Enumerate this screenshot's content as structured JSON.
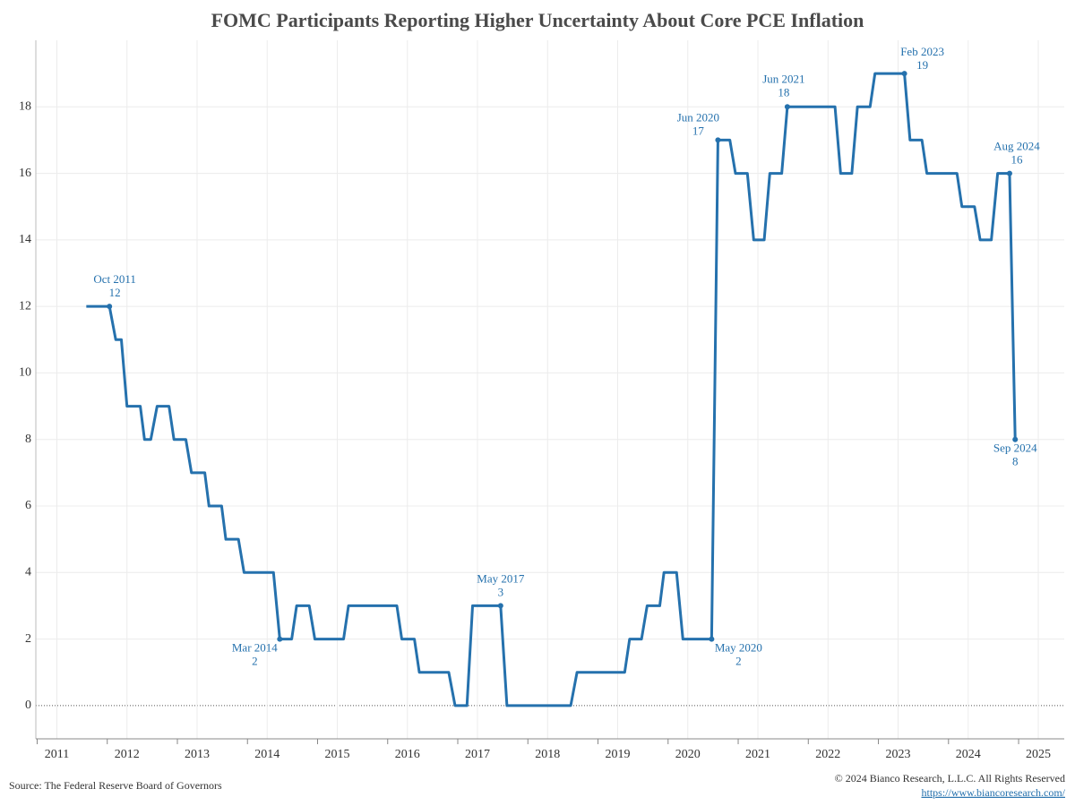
{
  "chart_data": {
    "type": "line",
    "title": "FOMC Participants Reporting Higher Uncertainty About Core PCE Inflation",
    "source": "Source: The Federal Reserve Board of Governors",
    "copyright": "© 2024 Bianco Research, L.L.C. All Rights Reserved",
    "url": "https://www.biancoresearch.com/",
    "xlim": [
      2010.7,
      2025.37
    ],
    "xticks": [
      2011,
      2012,
      2013,
      2014,
      2015,
      2016,
      2017,
      2018,
      2019,
      2020,
      2021,
      2022,
      2023,
      2024,
      2025
    ],
    "ylim": [
      -1,
      20
    ],
    "yticks": [
      0,
      2,
      4,
      6,
      8,
      10,
      12,
      14,
      16,
      18
    ],
    "grid": true,
    "series": [
      {
        "name": "Participants",
        "color": "#2571ad",
        "x": [
          2011.42,
          2011.75,
          2011.84,
          2011.92,
          2012.0,
          2012.19,
          2012.25,
          2012.34,
          2012.43,
          2012.6,
          2012.67,
          2012.84,
          2012.92,
          2013.11,
          2013.17,
          2013.35,
          2013.41,
          2013.59,
          2013.67,
          2014.09,
          2014.18,
          2014.35,
          2014.42,
          2014.6,
          2014.68,
          2015.09,
          2015.16,
          2015.85,
          2015.92,
          2016.1,
          2016.17,
          2016.59,
          2016.68,
          2016.85,
          2016.93,
          2017.33,
          2017.42,
          2018.33,
          2018.42,
          2019.1,
          2019.17,
          2019.34,
          2019.42,
          2019.6,
          2019.66,
          2019.84,
          2019.93,
          2020.34,
          2020.43,
          2020.6,
          2020.68,
          2020.85,
          2020.94,
          2021.09,
          2021.17,
          2021.34,
          2021.42,
          2022.1,
          2022.18,
          2022.34,
          2022.42,
          2022.6,
          2022.67,
          2023.09,
          2023.17,
          2023.34,
          2023.41,
          2023.84,
          2023.91,
          2024.09,
          2024.17,
          2024.33,
          2024.42,
          2024.59,
          2024.67
        ],
        "values": [
          12,
          12,
          11,
          11,
          9,
          9,
          8,
          8,
          9,
          9,
          8,
          8,
          7,
          7,
          6,
          6,
          5,
          5,
          4,
          4,
          2,
          2,
          3,
          3,
          2,
          2,
          3,
          3,
          2,
          2,
          1,
          1,
          0,
          0,
          3,
          3,
          0,
          0,
          1,
          1,
          2,
          2,
          3,
          3,
          4,
          4,
          2,
          2,
          17,
          17,
          16,
          16,
          14,
          14,
          16,
          16,
          18,
          18,
          16,
          16,
          18,
          18,
          19,
          19,
          17,
          17,
          16,
          16,
          15,
          15,
          14,
          14,
          16,
          16,
          8
        ]
      }
    ],
    "annotations": [
      {
        "date": "Oct 2011",
        "value": 12,
        "x": 2011.75
      },
      {
        "date": "Mar 2014",
        "value": 2,
        "x": 2014.18
      },
      {
        "date": "May 2017",
        "value": 3,
        "x": 2017.33
      },
      {
        "date": "May 2020",
        "value": 2,
        "x": 2020.34
      },
      {
        "date": "Jun 2020",
        "value": 17,
        "x": 2020.43
      },
      {
        "date": "Jun 2021",
        "value": 18,
        "x": 2021.42
      },
      {
        "date": "Feb 2023",
        "value": 19,
        "x": 2023.09
      },
      {
        "date": "Aug 2024",
        "value": 16,
        "x": 2024.59
      },
      {
        "date": "Sep 2024",
        "value": 8,
        "x": 2024.67
      }
    ]
  }
}
